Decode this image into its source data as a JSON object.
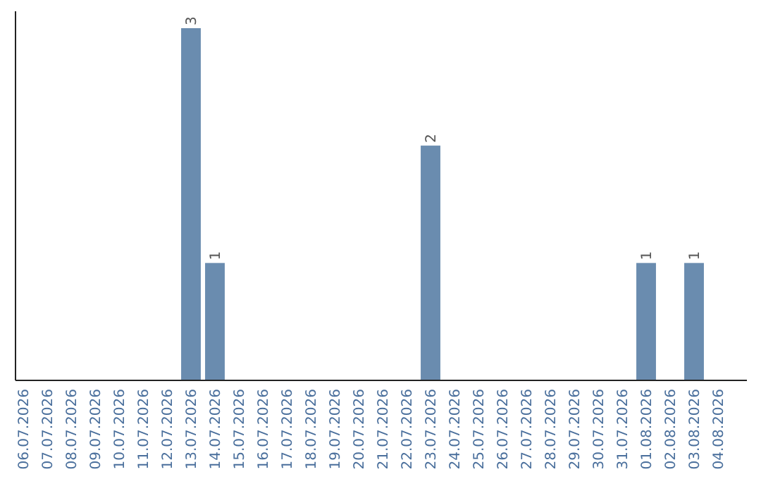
{
  "chart_data": {
    "type": "bar",
    "categories": [
      "06.07.2026",
      "07.07.2026",
      "08.07.2026",
      "09.07.2026",
      "10.07.2026",
      "11.07.2026",
      "12.07.2026",
      "13.07.2026",
      "14.07.2026",
      "15.07.2026",
      "16.07.2026",
      "17.07.2026",
      "18.07.2026",
      "19.07.2026",
      "20.07.2026",
      "21.07.2026",
      "22.07.2026",
      "23.07.2026",
      "24.07.2026",
      "25.07.2026",
      "26.07.2026",
      "27.07.2026",
      "28.07.2026",
      "29.07.2026",
      "30.07.2026",
      "31.07.2026",
      "01.08.2026",
      "02.08.2026",
      "03.08.2026",
      "04.08.2026"
    ],
    "values": [
      0,
      0,
      0,
      0,
      0,
      0,
      0,
      3,
      1,
      0,
      0,
      0,
      0,
      0,
      0,
      0,
      0,
      2,
      0,
      0,
      0,
      0,
      0,
      0,
      0,
      0,
      1,
      0,
      1,
      0
    ],
    "value_labels": [
      null,
      null,
      null,
      null,
      null,
      null,
      null,
      "3",
      "1",
      null,
      null,
      null,
      null,
      null,
      null,
      null,
      null,
      "2",
      null,
      null,
      null,
      null,
      null,
      null,
      null,
      null,
      "1",
      null,
      "1",
      null
    ],
    "color": "#6a8caf"
  }
}
